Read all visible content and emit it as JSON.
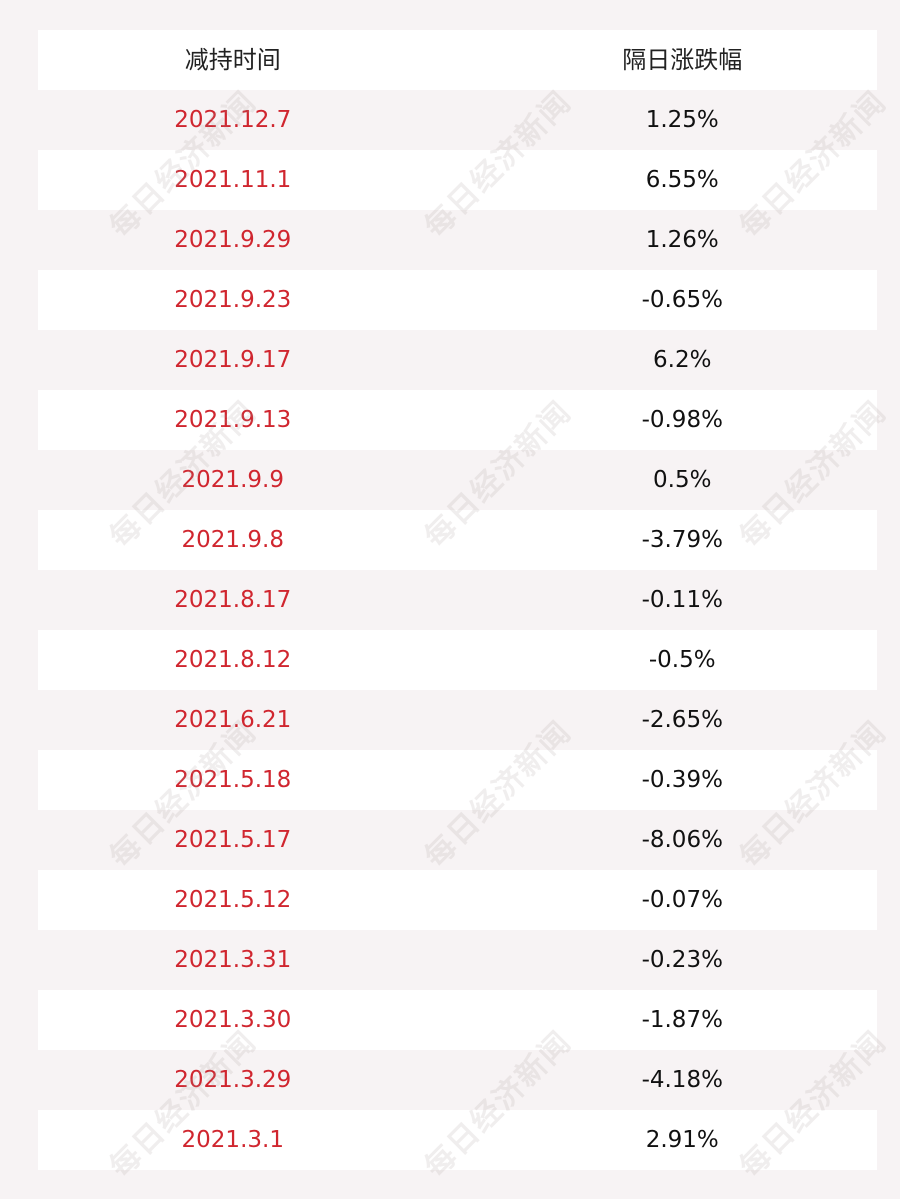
{
  "table": {
    "headers": {
      "date": "减持时间",
      "change": "隔日涨跌幅"
    },
    "rows": [
      {
        "date": "2021.12.7",
        "change": "1.25%"
      },
      {
        "date": "2021.11.1",
        "change": "6.55%"
      },
      {
        "date": "2021.9.29",
        "change": "1.26%"
      },
      {
        "date": "2021.9.23",
        "change": "-0.65%"
      },
      {
        "date": "2021.9.17",
        "change": "6.2%"
      },
      {
        "date": "2021.9.13",
        "change": "-0.98%"
      },
      {
        "date": "2021.9.9",
        "change": "0.5%"
      },
      {
        "date": "2021.9.8",
        "change": "-3.79%"
      },
      {
        "date": "2021.8.17",
        "change": "-0.11%"
      },
      {
        "date": "2021.8.12",
        "change": "-0.5%"
      },
      {
        "date": "2021.6.21",
        "change": "-2.65%"
      },
      {
        "date": "2021.5.18",
        "change": "-0.39%"
      },
      {
        "date": "2021.5.17",
        "change": "-8.06%"
      },
      {
        "date": "2021.5.12",
        "change": "-0.07%"
      },
      {
        "date": "2021.3.31",
        "change": "-0.23%"
      },
      {
        "date": "2021.3.30",
        "change": "-1.87%"
      },
      {
        "date": "2021.3.29",
        "change": "-4.18%"
      },
      {
        "date": "2021.3.1",
        "change": "2.91%"
      }
    ]
  },
  "watermark": {
    "text": "每日经济新闻"
  },
  "colors": {
    "date_text": "#d0262f",
    "value_text": "#111111",
    "background": "#f7f3f4",
    "row_white": "#ffffff"
  }
}
